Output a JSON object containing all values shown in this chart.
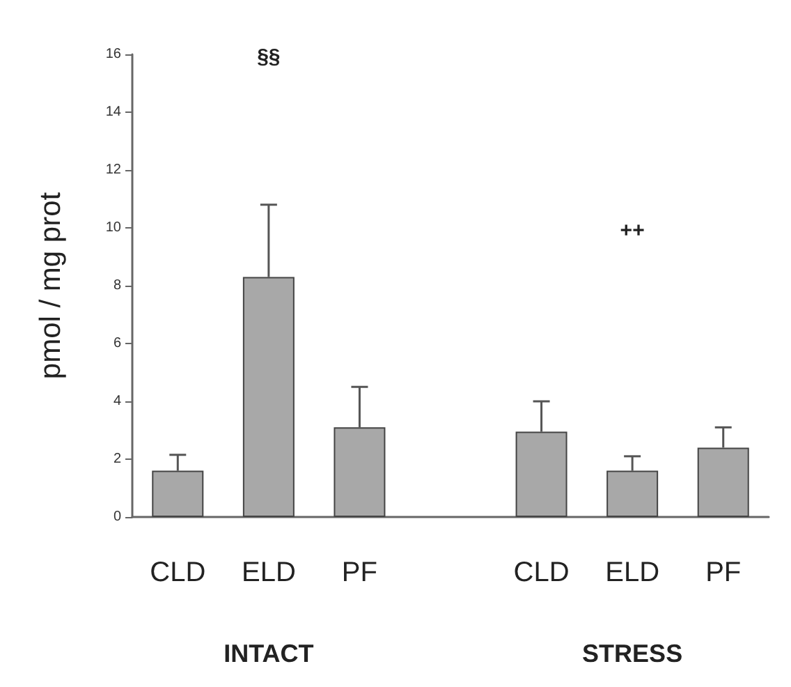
{
  "chart_data": {
    "type": "bar",
    "ylabel": "pmol / mg prot",
    "categories": [
      "CLD",
      "ELD",
      "PF",
      null,
      "CLD",
      "ELD",
      "PF"
    ],
    "values": [
      1.6,
      8.3,
      3.1,
      null,
      2.95,
      1.6,
      2.4
    ],
    "errors": [
      [
        1.6,
        2.15
      ],
      [
        8.3,
        10.8
      ],
      [
        3.1,
        4.5
      ],
      null,
      [
        2.95,
        4.0
      ],
      [
        1.6,
        2.1
      ],
      [
        2.4,
        3.1
      ]
    ],
    "color": "#a8a8a8",
    "ylim": [
      0,
      16
    ],
    "yticks": [
      0,
      2,
      4,
      6,
      8,
      10,
      12,
      14,
      16
    ],
    "grid": false,
    "annotations": [
      "§§",
      "++",
      "INTACT",
      "STRESS"
    ]
  }
}
